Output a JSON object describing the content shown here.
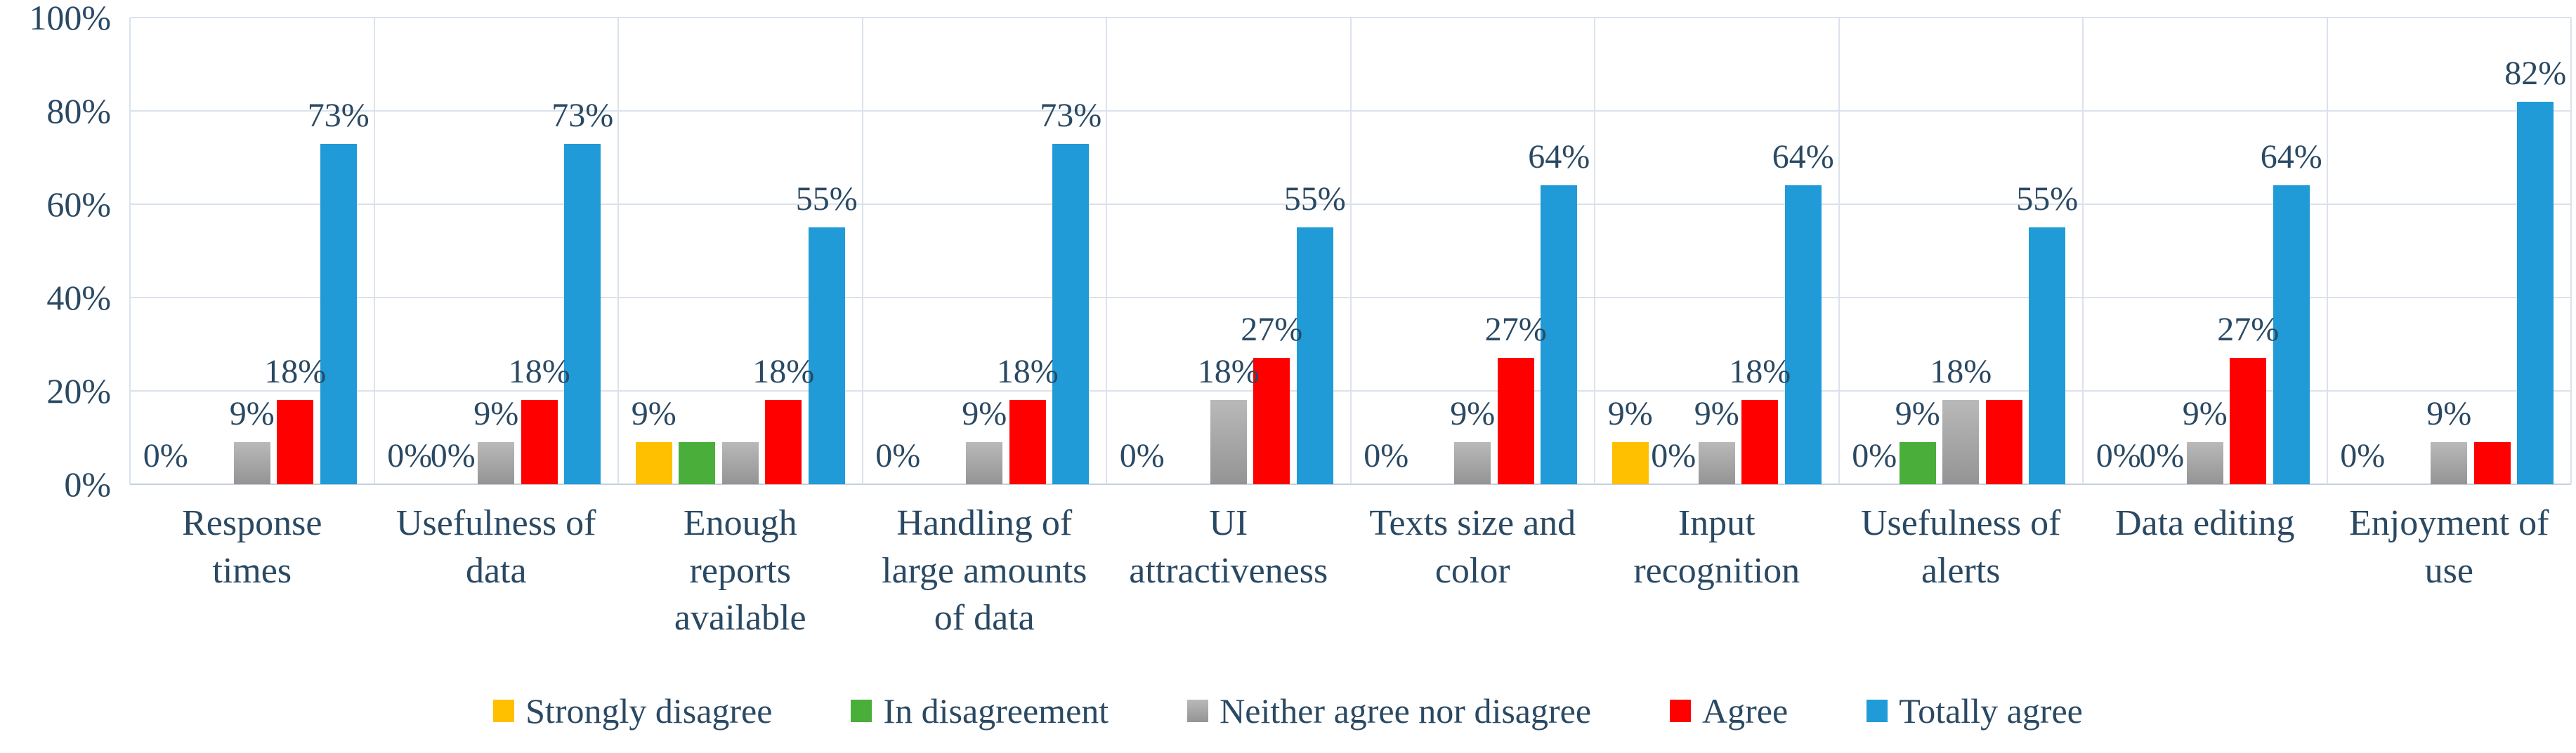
{
  "chart_data": {
    "type": "bar",
    "title": "",
    "xlabel": "",
    "ylabel": "",
    "ylim": [
      0,
      100
    ],
    "grid": true,
    "legend_position": "bottom",
    "y_ticks": [
      {
        "label": "100%",
        "value": 100
      },
      {
        "label": "80%",
        "value": 80
      },
      {
        "label": "60%",
        "value": 60
      },
      {
        "label": "40%",
        "value": 40
      },
      {
        "label": "20%",
        "value": 20
      },
      {
        "label": "0%",
        "value": 0
      }
    ],
    "colors": {
      "strongly_disagree": "#FFC000",
      "in_disagreement": "#4AAE3A",
      "neither": "#A6A6A6",
      "agree": "#FF0000",
      "totally_agree": "#209BD7",
      "text": "#2A4963",
      "gridline": "#DAE2EC"
    },
    "series": [
      {
        "name": "Strongly disagree",
        "color": "#FFC000",
        "values": [
          0,
          0,
          9,
          0,
          0,
          0,
          9,
          0,
          0,
          0
        ]
      },
      {
        "name": "In disagreement",
        "color": "#4AAE3A",
        "values": [
          0,
          0,
          9,
          0,
          0,
          0,
          0,
          9,
          0,
          0
        ]
      },
      {
        "name": "Neither agree nor disagree",
        "color": "#A6A6A6",
        "values": [
          9,
          9,
          9,
          9,
          18,
          9,
          9,
          18,
          9,
          9
        ]
      },
      {
        "name": "Agree",
        "color": "#FF0000",
        "values": [
          18,
          18,
          18,
          18,
          27,
          27,
          18,
          18,
          27,
          9
        ]
      },
      {
        "name": "Totally agree",
        "color": "#209BD7",
        "values": [
          73,
          73,
          55,
          73,
          55,
          64,
          64,
          55,
          64,
          82
        ]
      }
    ],
    "categories": [
      {
        "label": "Response\ntimes",
        "visible_labels": [
          {
            "text": "0%",
            "slot": 0
          },
          {
            "text": "9%",
            "slot": 2
          },
          {
            "text": "18%",
            "slot": 3
          },
          {
            "text": "73%",
            "slot": 4
          }
        ]
      },
      {
        "label": "Usefulness of\ndata",
        "visible_labels": [
          {
            "text": "0%",
            "slot": 0
          },
          {
            "text": "0%",
            "slot": 1
          },
          {
            "text": "9%",
            "slot": 2
          },
          {
            "text": "18%",
            "slot": 3
          },
          {
            "text": "73%",
            "slot": 4
          }
        ]
      },
      {
        "label": "Enough\nreports\navailable",
        "visible_labels": [
          {
            "text": "9%",
            "slot": 0
          },
          {
            "text": "18%",
            "slot": 3
          },
          {
            "text": "55%",
            "slot": 4
          }
        ]
      },
      {
        "label": "Handling of\nlarge amounts\nof data",
        "visible_labels": [
          {
            "text": "0%",
            "slot": 0
          },
          {
            "text": "9%",
            "slot": 2
          },
          {
            "text": "18%",
            "slot": 3
          },
          {
            "text": "73%",
            "slot": 4
          }
        ]
      },
      {
        "label": "UI\nattractiveness",
        "visible_labels": [
          {
            "text": "0%",
            "slot": 0
          },
          {
            "text": "18%",
            "slot": 2
          },
          {
            "text": "27%",
            "slot": 3
          },
          {
            "text": "55%",
            "slot": 4
          }
        ]
      },
      {
        "label": "Texts size and\ncolor",
        "visible_labels": [
          {
            "text": "0%",
            "slot": 0
          },
          {
            "text": "9%",
            "slot": 2
          },
          {
            "text": "27%",
            "slot": 3
          },
          {
            "text": "64%",
            "slot": 4
          }
        ]
      },
      {
        "label": "Input\nrecognition",
        "visible_labels": [
          {
            "text": "9%",
            "slot": 0
          },
          {
            "text": "0%",
            "slot": 1
          },
          {
            "text": "9%",
            "slot": 2
          },
          {
            "text": "18%",
            "slot": 3
          },
          {
            "text": "64%",
            "slot": 4
          }
        ]
      },
      {
        "label": "Usefulness of\nalerts",
        "visible_labels": [
          {
            "text": "0%",
            "slot": 0
          },
          {
            "text": "9%",
            "slot": 1
          },
          {
            "text": "18%",
            "slot": 2
          },
          {
            "text": "55%",
            "slot": 4
          }
        ]
      },
      {
        "label": "Data editing",
        "visible_labels": [
          {
            "text": "0%",
            "slot": 0
          },
          {
            "text": "0%",
            "slot": 1
          },
          {
            "text": "9%",
            "slot": 2
          },
          {
            "text": "27%",
            "slot": 3
          },
          {
            "text": "64%",
            "slot": 4
          }
        ]
      },
      {
        "label": "Enjoyment of\nuse",
        "visible_labels": [
          {
            "text": "0%",
            "slot": 0
          },
          {
            "text": "9%",
            "slot": 2
          },
          {
            "text": "82%",
            "slot": 4
          }
        ]
      }
    ],
    "legend": [
      {
        "label": "Strongly disagree",
        "color": "#FFC000"
      },
      {
        "label": "In disagreement",
        "color": "#4AAE3A"
      },
      {
        "label": "Neither agree nor disagree",
        "color": "#A6A6A6"
      },
      {
        "label": "Agree",
        "color": "#FF0000"
      },
      {
        "label": "Totally agree",
        "color": "#209BD7"
      }
    ]
  }
}
